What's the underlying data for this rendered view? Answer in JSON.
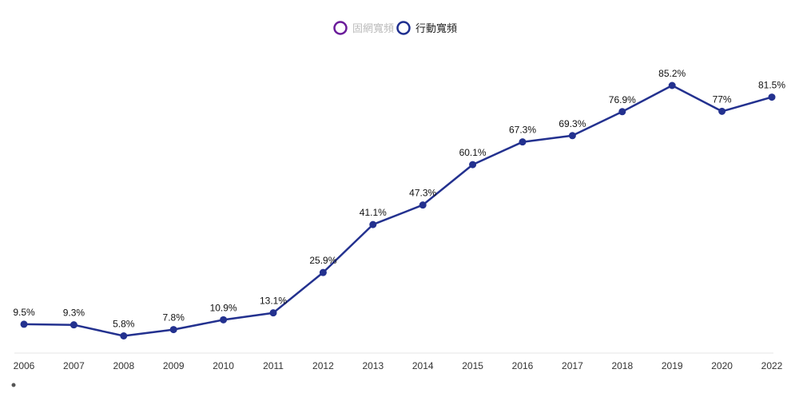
{
  "legend": [
    {
      "label": "固網寬頻",
      "color": "#6a1b9a",
      "active": false
    },
    {
      "label": "行動寬頻",
      "color": "#1f2f8f",
      "active": true
    }
  ],
  "colors": {
    "series": "#23318f",
    "inactive_text": "#bbbbbb",
    "active_text": "#222222",
    "axis": "#e6e6e6"
  },
  "chart_data": {
    "type": "line",
    "title": "",
    "xlabel": "",
    "ylabel": "",
    "x": [
      "2006",
      "2007",
      "2008",
      "2009",
      "2010",
      "2011",
      "2012",
      "2013",
      "2014",
      "2015",
      "2016",
      "2017",
      "2018",
      "2019",
      "2020",
      "2022"
    ],
    "ylim": [
      0,
      90
    ],
    "grid": false,
    "legend_position": "top-center",
    "series": [
      {
        "name": "行動寬頻",
        "values": [
          9.5,
          9.3,
          5.8,
          7.8,
          10.9,
          13.1,
          25.9,
          41.1,
          47.3,
          60.1,
          67.3,
          69.3,
          76.9,
          85.2,
          77,
          81.5
        ]
      }
    ],
    "data_labels": [
      "9.5%",
      "9.3%",
      "5.8%",
      "7.8%",
      "10.9%",
      "13.1%",
      "25.9%",
      "41.1%",
      "47.3%",
      "60.1%",
      "67.3%",
      "69.3%",
      "76.9%",
      "85.2%",
      "77%",
      "81.5%"
    ]
  }
}
